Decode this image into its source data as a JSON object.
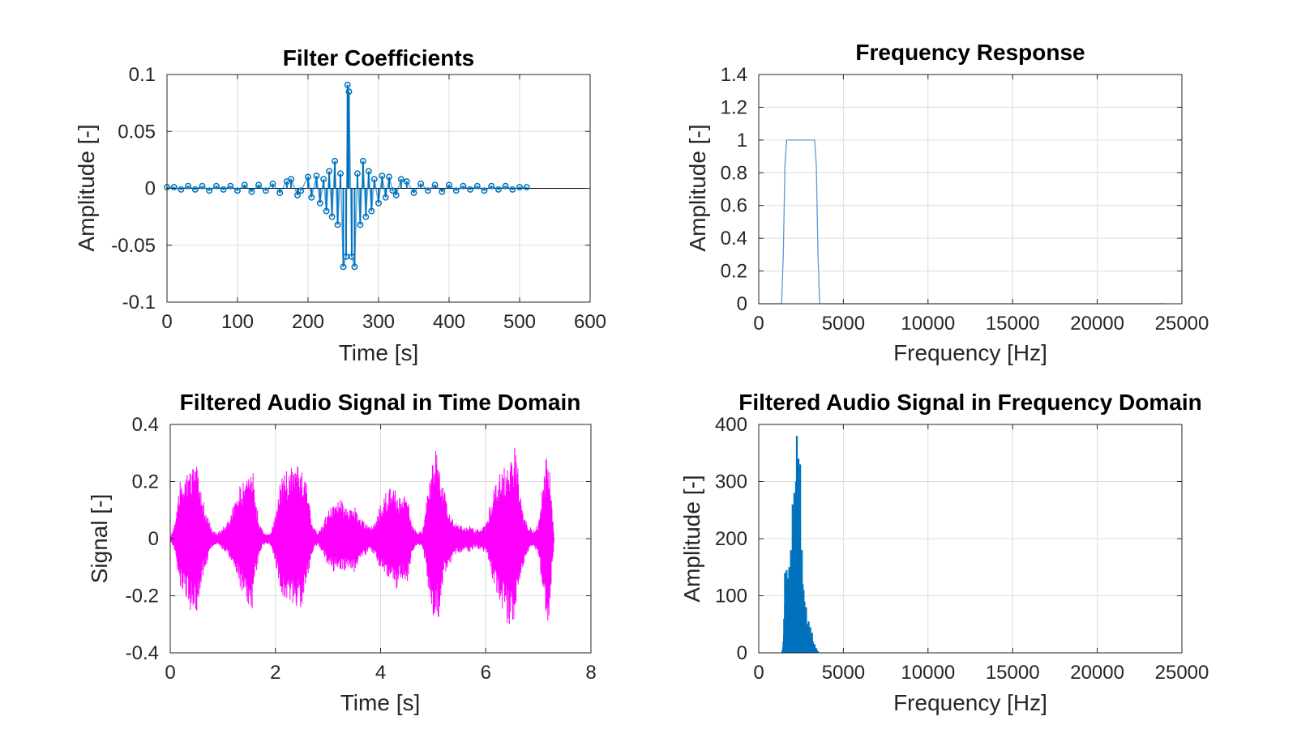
{
  "colors": {
    "stem": "#0072bd",
    "response": "#5b9bd5",
    "time_signal": "#ff00ff",
    "spectrum": "#0072bd",
    "grid": "#dcdcdc",
    "axes": "#262626"
  },
  "chart_data": [
    {
      "id": "coeffs",
      "type": "stem",
      "title": "Filter Coefficients",
      "xlabel": "Time [s]",
      "ylabel": "Amplitude [-]",
      "xlim": [
        0,
        600
      ],
      "ylim": [
        -0.1,
        0.1
      ],
      "xticks": [
        0,
        100,
        200,
        300,
        400,
        500,
        600
      ],
      "xtick_labels": [
        "0",
        "100",
        "200",
        "300",
        "400",
        "500",
        "600"
      ],
      "yticks": [
        -0.1,
        -0.05,
        0,
        0.05,
        0.1
      ],
      "ytick_labels": [
        "-0.1",
        "-0.05",
        "0",
        "0.05",
        "0.1"
      ],
      "grid": true,
      "marker": "circle",
      "series": [
        {
          "x": [
            0,
            10,
            20,
            30,
            40,
            50,
            60,
            70,
            80,
            90,
            100,
            110,
            120,
            130,
            140,
            150,
            160,
            170,
            176,
            185,
            190,
            200,
            205,
            212,
            217,
            222,
            226,
            230,
            234,
            238,
            242,
            246,
            250,
            254,
            256,
            258,
            262,
            266,
            270,
            274,
            278,
            282,
            286,
            290,
            294,
            300,
            305,
            310,
            315,
            320,
            325,
            332,
            340,
            350,
            360,
            370,
            380,
            390,
            400,
            410,
            420,
            430,
            440,
            450,
            460,
            470,
            480,
            490,
            500,
            510
          ],
          "y": [
            0.001,
            0.001,
            -0.001,
            0.002,
            -0.001,
            0.002,
            -0.002,
            0.002,
            -0.001,
            0.002,
            -0.002,
            0.003,
            -0.003,
            0.003,
            -0.002,
            0.004,
            -0.004,
            0.006,
            0.008,
            -0.006,
            -0.002,
            0.01,
            -0.008,
            0.011,
            -0.013,
            0.008,
            -0.02,
            0.015,
            -0.025,
            0.024,
            -0.032,
            0.013,
            -0.069,
            -0.06,
            0.091,
            0.085,
            -0.06,
            -0.069,
            0.013,
            -0.032,
            0.024,
            -0.025,
            0.015,
            -0.02,
            0.008,
            -0.013,
            0.011,
            -0.008,
            0.01,
            -0.002,
            -0.006,
            0.008,
            0.006,
            -0.004,
            0.004,
            -0.002,
            0.003,
            -0.003,
            0.003,
            -0.002,
            0.002,
            -0.001,
            0.002,
            -0.002,
            0.002,
            -0.001,
            0.002,
            -0.001,
            0.001,
            0.001
          ]
        }
      ]
    },
    {
      "id": "response",
      "type": "line",
      "title": "Frequency Response",
      "xlabel": "Frequency [Hz]",
      "ylabel": "Amplitude [-]",
      "xlim": [
        0,
        25000
      ],
      "ylim": [
        0,
        1.4
      ],
      "xticks": [
        0,
        5000,
        10000,
        15000,
        20000,
        25000
      ],
      "xtick_labels": [
        "0",
        "5000",
        "10000",
        "15000",
        "20000",
        "25000"
      ],
      "yticks": [
        0,
        0.2,
        0.4,
        0.6,
        0.8,
        1,
        1.2,
        1.4
      ],
      "ytick_labels": [
        "0",
        "0.2",
        "0.4",
        "0.6",
        "0.8",
        "1",
        "1.2",
        "1.4"
      ],
      "grid": true,
      "series": [
        {
          "x": [
            0,
            1350,
            1450,
            1550,
            1650,
            1750,
            3200,
            3300,
            3400,
            3500,
            3600,
            24000
          ],
          "y": [
            0,
            0,
            0.3,
            0.85,
            1.0,
            1.0,
            1.0,
            1.0,
            0.85,
            0.3,
            0,
            0
          ]
        }
      ]
    },
    {
      "id": "time_signal",
      "type": "envelope",
      "title": "Filtered Audio Signal in Time Domain",
      "xlabel": "Time [s]",
      "ylabel": "Signal [-]",
      "xlim": [
        0,
        8
      ],
      "ylim": [
        -0.4,
        0.4
      ],
      "xticks": [
        0,
        2,
        4,
        6,
        8
      ],
      "xtick_labels": [
        "0",
        "2",
        "4",
        "6",
        "8"
      ],
      "yticks": [
        -0.4,
        -0.2,
        0,
        0.2,
        0.4
      ],
      "ytick_labels": [
        "-0.4",
        "-0.2",
        "0",
        "0.2",
        "0.4"
      ],
      "grid": true,
      "series": [
        {
          "x": [
            0,
            0.1,
            0.2,
            0.3,
            0.4,
            0.5,
            0.55,
            0.6,
            0.8,
            0.9,
            1.0,
            1.1,
            1.2,
            1.3,
            1.4,
            1.5,
            1.55,
            1.6,
            1.7,
            1.8,
            1.9,
            2.0,
            2.1,
            2.2,
            2.3,
            2.4,
            2.5,
            2.6,
            2.7,
            2.8,
            2.9,
            3.0,
            3.1,
            3.2,
            3.3,
            3.4,
            3.5,
            3.6,
            3.7,
            3.8,
            3.9,
            4.0,
            4.1,
            4.2,
            4.3,
            4.4,
            4.5,
            4.6,
            4.7,
            4.8,
            4.9,
            5.0,
            5.05,
            5.1,
            5.2,
            5.3,
            5.4,
            5.5,
            5.6,
            5.7,
            5.8,
            5.9,
            6.0,
            6.1,
            6.2,
            6.3,
            6.4,
            6.5,
            6.55,
            6.6,
            6.7,
            6.8,
            6.9,
            7.0,
            7.1,
            7.15,
            7.2,
            7.3
          ],
          "upper": [
            0.005,
            0.06,
            0.22,
            0.24,
            0.25,
            0.26,
            0.2,
            0.15,
            0.03,
            0.02,
            0.04,
            0.06,
            0.12,
            0.18,
            0.2,
            0.27,
            0.3,
            0.18,
            0.05,
            0.02,
            0.02,
            0.08,
            0.22,
            0.24,
            0.25,
            0.26,
            0.27,
            0.18,
            0.05,
            0.02,
            0.05,
            0.1,
            0.12,
            0.14,
            0.13,
            0.1,
            0.12,
            0.08,
            0.06,
            0.04,
            0.06,
            0.12,
            0.16,
            0.18,
            0.17,
            0.14,
            0.17,
            0.05,
            0.02,
            0.03,
            0.18,
            0.28,
            0.35,
            0.26,
            0.18,
            0.1,
            0.06,
            0.05,
            0.04,
            0.05,
            0.03,
            0.04,
            0.05,
            0.14,
            0.2,
            0.24,
            0.27,
            0.3,
            0.34,
            0.3,
            0.1,
            0.05,
            0.03,
            0.05,
            0.22,
            0.3,
            0.3,
            0.005
          ],
          "lower": [
            -0.005,
            -0.06,
            -0.18,
            -0.22,
            -0.26,
            -0.28,
            -0.2,
            -0.14,
            -0.03,
            -0.02,
            -0.04,
            -0.06,
            -0.1,
            -0.16,
            -0.2,
            -0.25,
            -0.28,
            -0.16,
            -0.05,
            -0.02,
            -0.02,
            -0.08,
            -0.2,
            -0.24,
            -0.26,
            -0.24,
            -0.26,
            -0.16,
            -0.05,
            -0.02,
            -0.05,
            -0.1,
            -0.12,
            -0.1,
            -0.12,
            -0.1,
            -0.12,
            -0.08,
            -0.06,
            -0.04,
            -0.06,
            -0.12,
            -0.12,
            -0.16,
            -0.18,
            -0.14,
            -0.16,
            -0.05,
            -0.02,
            -0.03,
            -0.16,
            -0.3,
            -0.3,
            -0.28,
            -0.14,
            -0.1,
            -0.06,
            -0.05,
            -0.04,
            -0.05,
            -0.03,
            -0.04,
            -0.05,
            -0.12,
            -0.2,
            -0.24,
            -0.3,
            -0.3,
            -0.28,
            -0.2,
            -0.1,
            -0.05,
            -0.03,
            -0.05,
            -0.22,
            -0.31,
            -0.28,
            -0.005
          ]
        }
      ]
    },
    {
      "id": "spectrum",
      "type": "bar",
      "title": "Filtered Audio Signal in Frequency Domain",
      "xlabel": "Frequency [Hz]",
      "ylabel": "Amplitude [-]",
      "xlim": [
        0,
        25000
      ],
      "ylim": [
        0,
        400
      ],
      "xticks": [
        0,
        5000,
        10000,
        15000,
        20000,
        25000
      ],
      "xtick_labels": [
        "0",
        "5000",
        "10000",
        "15000",
        "20000",
        "25000"
      ],
      "yticks": [
        0,
        100,
        200,
        300,
        400
      ],
      "ytick_labels": [
        "0",
        "100",
        "200",
        "300",
        "400"
      ],
      "grid": true,
      "series": [
        {
          "x": [
            1400,
            1500,
            1550,
            1600,
            1650,
            1700,
            1750,
            1800,
            1850,
            1900,
            1950,
            2000,
            2050,
            2100,
            2150,
            2200,
            2250,
            2300,
            2350,
            2400,
            2450,
            2500,
            2550,
            2600,
            2650,
            2700,
            2750,
            2800,
            2850,
            2900,
            2950,
            3000,
            3050,
            3100,
            3150,
            3200,
            3300,
            3400,
            3500
          ],
          "y": [
            5,
            60,
            140,
            120,
            145,
            100,
            130,
            150,
            110,
            180,
            160,
            260,
            200,
            280,
            240,
            300,
            380,
            260,
            340,
            200,
            330,
            150,
            180,
            120,
            110,
            90,
            60,
            80,
            50,
            40,
            55,
            30,
            45,
            25,
            35,
            20,
            15,
            8,
            3
          ]
        }
      ]
    }
  ]
}
